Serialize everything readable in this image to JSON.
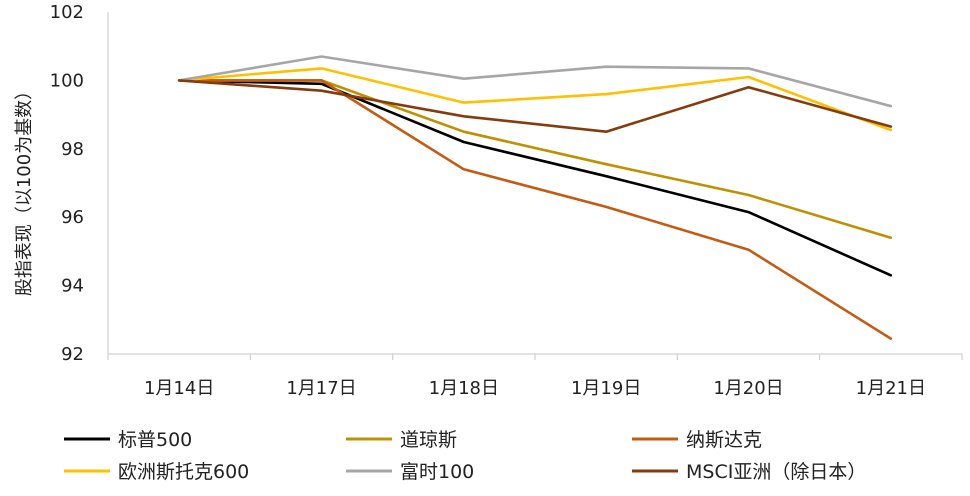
{
  "chart_data": {
    "type": "line",
    "ylabel": "股指表现（以100为基数）",
    "ylim": [
      92,
      102
    ],
    "y_ticks": [
      92,
      94,
      96,
      98,
      100,
      102
    ],
    "categories": [
      "1月14日",
      "1月17日",
      "1月18日",
      "1月19日",
      "1月20日",
      "1月21日"
    ],
    "grid": false,
    "legend_position": "bottom",
    "series": [
      {
        "name": "标普500",
        "color": "#000000",
        "values": [
          100,
          99.9,
          98.2,
          97.2,
          96.15,
          94.3
        ]
      },
      {
        "name": "道琼斯",
        "color": "#bf9000",
        "values": [
          100,
          100,
          98.5,
          97.55,
          96.65,
          95.4
        ]
      },
      {
        "name": "纳斯达克",
        "color": "#c55a11",
        "values": [
          100,
          100,
          97.4,
          96.3,
          95.05,
          92.45
        ]
      },
      {
        "name": "欧洲斯托克600",
        "color": "#ffc000",
        "values": [
          100,
          100.35,
          99.35,
          99.6,
          100.1,
          98.55
        ]
      },
      {
        "name": "富时100",
        "color": "#a6a6a6",
        "values": [
          100,
          100.7,
          100.05,
          100.4,
          100.35,
          99.25
        ]
      },
      {
        "name": "MSCI亚洲（除日本）",
        "color": "#843c0c",
        "values": [
          100,
          99.7,
          98.95,
          98.5,
          99.8,
          98.65
        ]
      }
    ]
  }
}
